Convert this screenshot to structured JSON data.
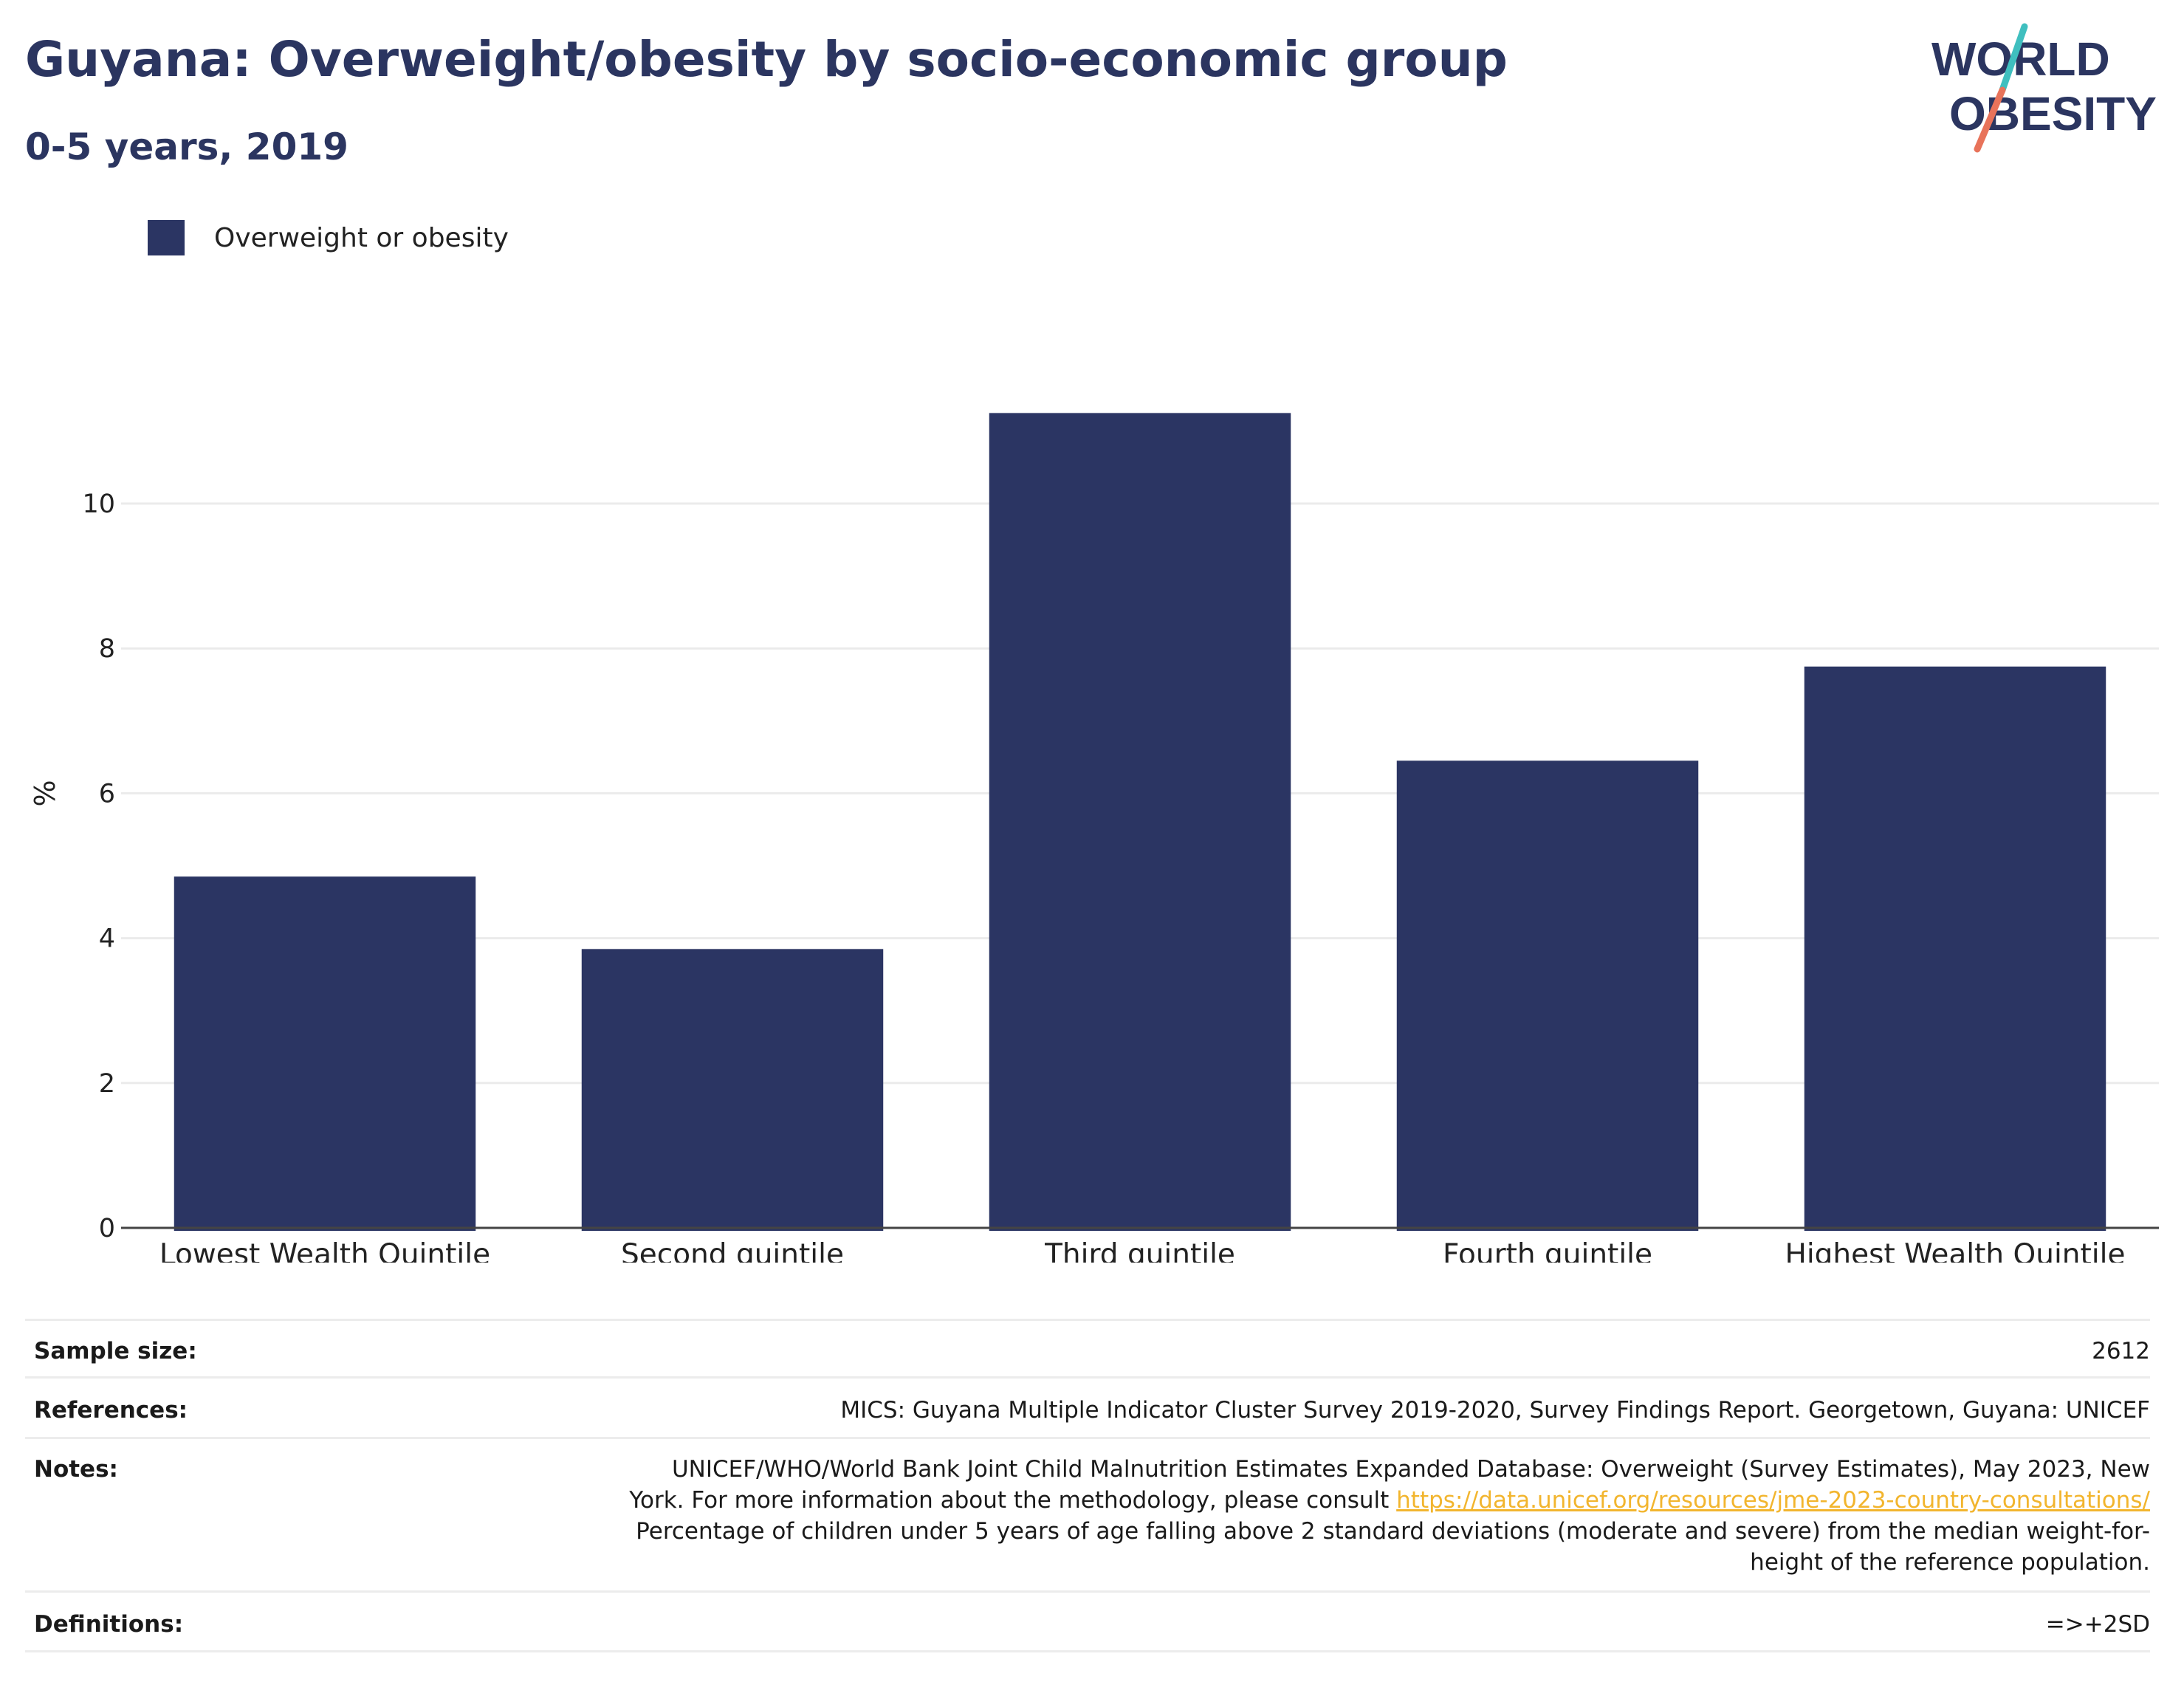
{
  "header": {
    "title": "Guyana: Overweight/obesity by socio-economic group",
    "subtitle": "0-5 years, 2019"
  },
  "logo": {
    "line1": "WORLD",
    "line2": "OBESITY",
    "colors": {
      "text": "#2b3560",
      "slash_top": "#3fbfbf",
      "slash_bottom": "#e8735a"
    }
  },
  "legend": {
    "label": "Overweight or obesity",
    "color": "#2b3563"
  },
  "chart_data": {
    "type": "bar",
    "title": "Guyana: Overweight/obesity by socio-economic group",
    "subtitle": "0-5 years, 2019",
    "categories": [
      "Lowest Wealth Quintile",
      "Second quintile",
      "Third quintile",
      "Fourth quintile",
      "Highest Wealth Quintile"
    ],
    "series": [
      {
        "name": "Overweight or obesity",
        "values": [
          4.85,
          3.85,
          11.25,
          6.45,
          7.75
        ],
        "color": "#2b3563"
      }
    ],
    "xlabel": "",
    "ylabel": "%",
    "ylim": [
      0,
      12
    ],
    "yticks": [
      0,
      2,
      4,
      6,
      8,
      10
    ],
    "grid": true,
    "legend_position": "top-left"
  },
  "meta": {
    "sample_size": {
      "label": "Sample size:",
      "value": "2612"
    },
    "references": {
      "label": "References:",
      "value": "MICS: Guyana Multiple Indicator Cluster Survey 2019-2020, Survey Findings Report. Georgetown, Guyana: UNICEF"
    },
    "notes": {
      "label": "Notes:",
      "text_before": "UNICEF/WHO/World Bank Joint Child Malnutrition Estimates Expanded Database: Overweight (Survey Estimates), May 2023, New York. For more information about the methodology, please consult ",
      "link": "https://data.unicef.org/resources/jme-2023-country-consultations/",
      "text_after": "Percentage of children under 5 years of age falling above 2 standard deviations (moderate and severe) from the median weight-for-height of the reference population.",
      "link_color": "#f2b52e"
    },
    "definitions": {
      "label": "Definitions:",
      "value": "=>+2SD"
    }
  }
}
